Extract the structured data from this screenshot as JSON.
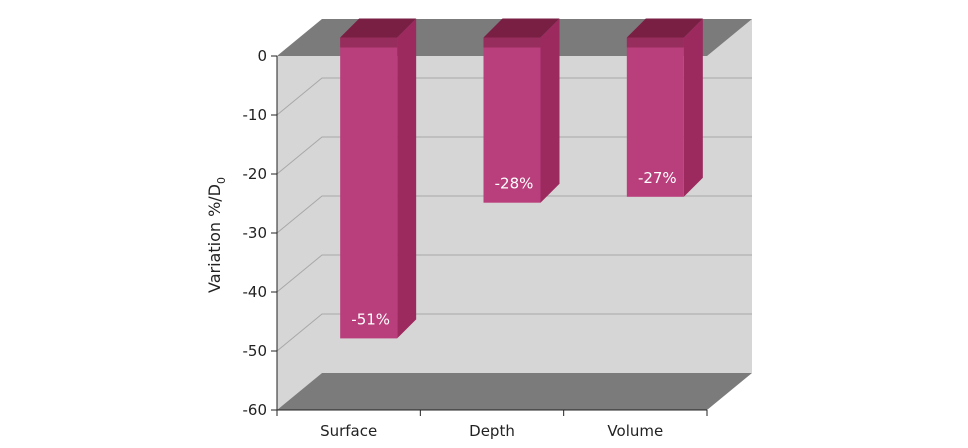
{
  "chart_data": {
    "type": "bar",
    "style": "3d",
    "categories": [
      "Surface",
      "Depth",
      "Volume"
    ],
    "values": [
      -51,
      -28,
      -27
    ],
    "data_labels": [
      "-51%",
      "-28%",
      "-27%"
    ],
    "ylabel": "Variation %/D",
    "ylabel_subscript": "0",
    "ylim": [
      -60,
      0
    ],
    "yticks": [
      0,
      -10,
      -20,
      -30,
      -40,
      -50,
      -60
    ],
    "ytick_labels": [
      "0",
      "-10",
      "-20",
      "-30",
      "-40",
      "-50",
      "-60"
    ],
    "grid": true,
    "legend": "none",
    "colors": {
      "bar_front": "#b93f7c",
      "bar_side": "#9c2a5e",
      "bar_top": "#7a1f44",
      "back_wall": "#d6d6d6",
      "floor": "#7b7b7b",
      "grid": "#a8a8a8"
    }
  }
}
